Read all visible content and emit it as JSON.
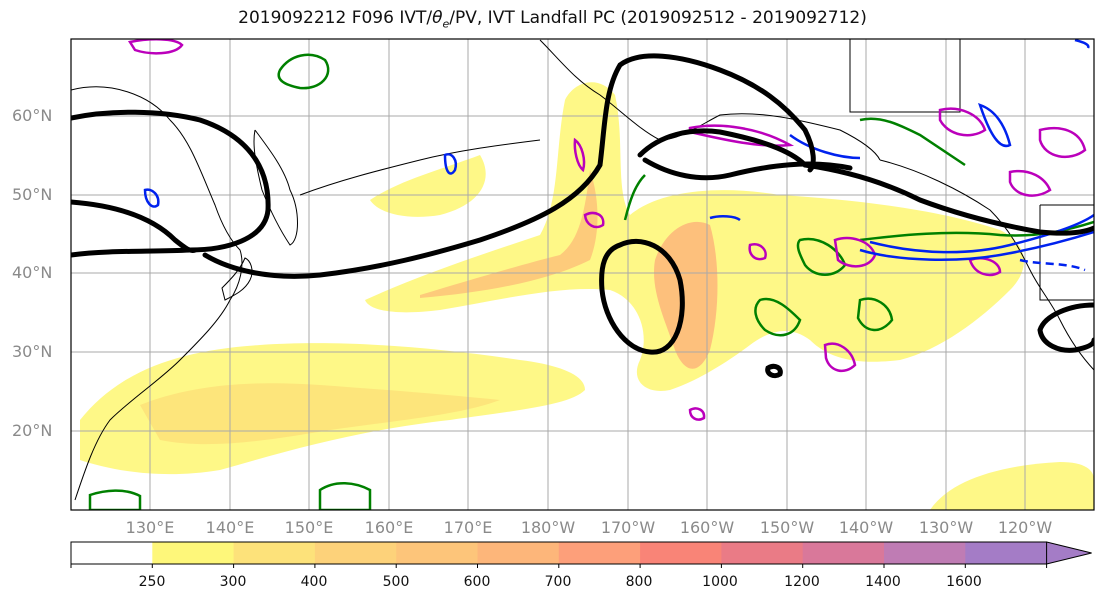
{
  "title": "2019092212 F096 IVT/θe/PV, IVT Landfall PC (2019092512 - 2019092712)",
  "title_parts": {
    "pre": "2019092212 F096 IVT/",
    "theta": "θ",
    "theta_sub": "e",
    "post": "/PV, IVT Landfall PC (2019092512 - 2019092712)"
  },
  "lat_labels": [
    "60°N",
    "50°N",
    "40°N",
    "30°N",
    "20°N"
  ],
  "lon_labels": [
    "130°E",
    "140°E",
    "150°E",
    "160°E",
    "170°E",
    "180°W",
    "170°W",
    "160°W",
    "150°W",
    "140°W",
    "130°W",
    "120°W"
  ],
  "colorbar": {
    "ticks": [
      "250",
      "300",
      "400",
      "500",
      "600",
      "700",
      "800",
      "1000",
      "1200",
      "1400",
      "1600"
    ],
    "colors": [
      "#ffffff",
      "#fef77a",
      "#fde27a",
      "#fdd27a",
      "#fdc57a",
      "#fdb67a",
      "#fd9f7a",
      "#f98477",
      "#ea7b86",
      "#d9789a",
      "#bf7cb4",
      "#a47cc6"
    ]
  },
  "legend_colors": {
    "pc_contour": "#000000",
    "theta_e": "#008000",
    "pv": "#bb00bb",
    "negative": "#0022ee",
    "coast": "#000000"
  }
}
